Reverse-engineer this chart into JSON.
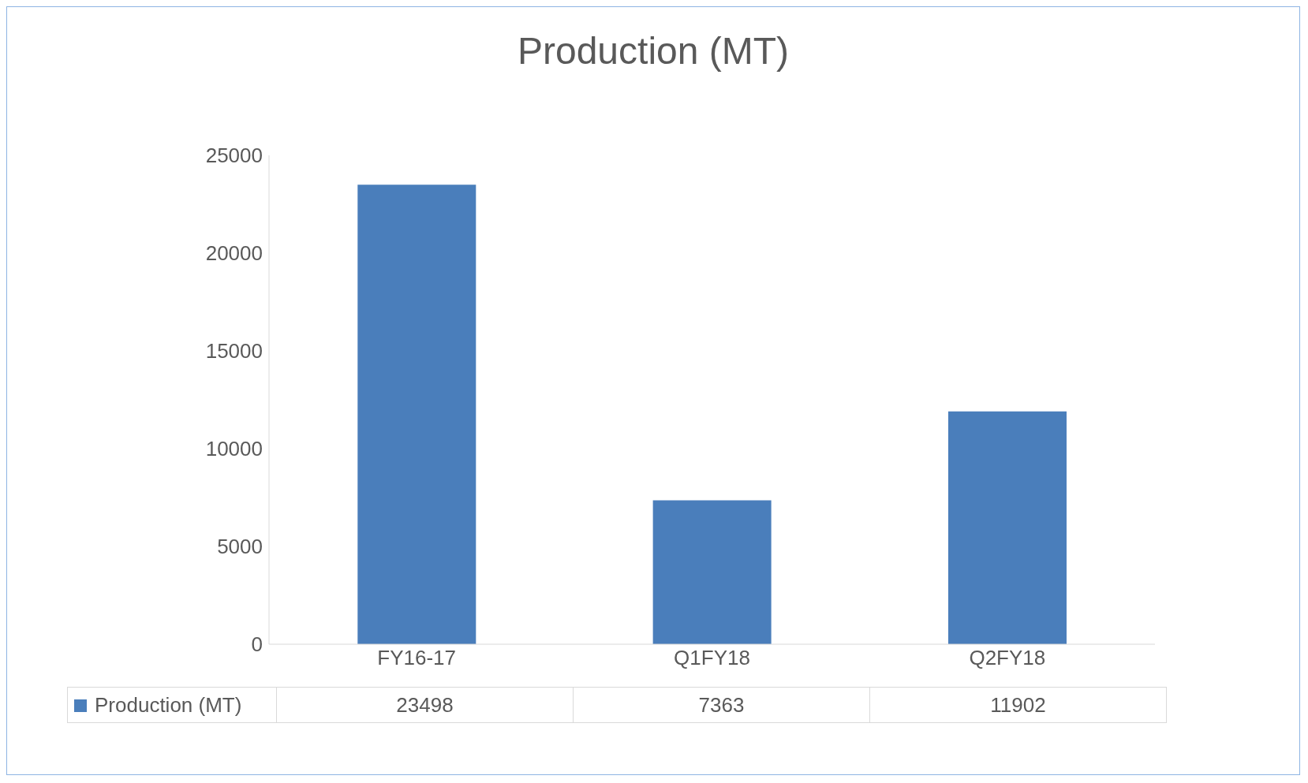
{
  "chart_data": {
    "type": "bar",
    "title": "Production (MT)",
    "categories": [
      "FY16-17",
      "Q1FY18",
      "Q2FY18"
    ],
    "series": [
      {
        "name": "Production (MT)",
        "color": "#4a7ebb",
        "values": [
          23498,
          7363,
          11902
        ]
      }
    ],
    "ylim": [
      0,
      25000
    ],
    "yticks": [
      0,
      5000,
      10000,
      15000,
      20000,
      25000
    ],
    "grid": false,
    "legend": "bottom",
    "data_labels": true
  }
}
